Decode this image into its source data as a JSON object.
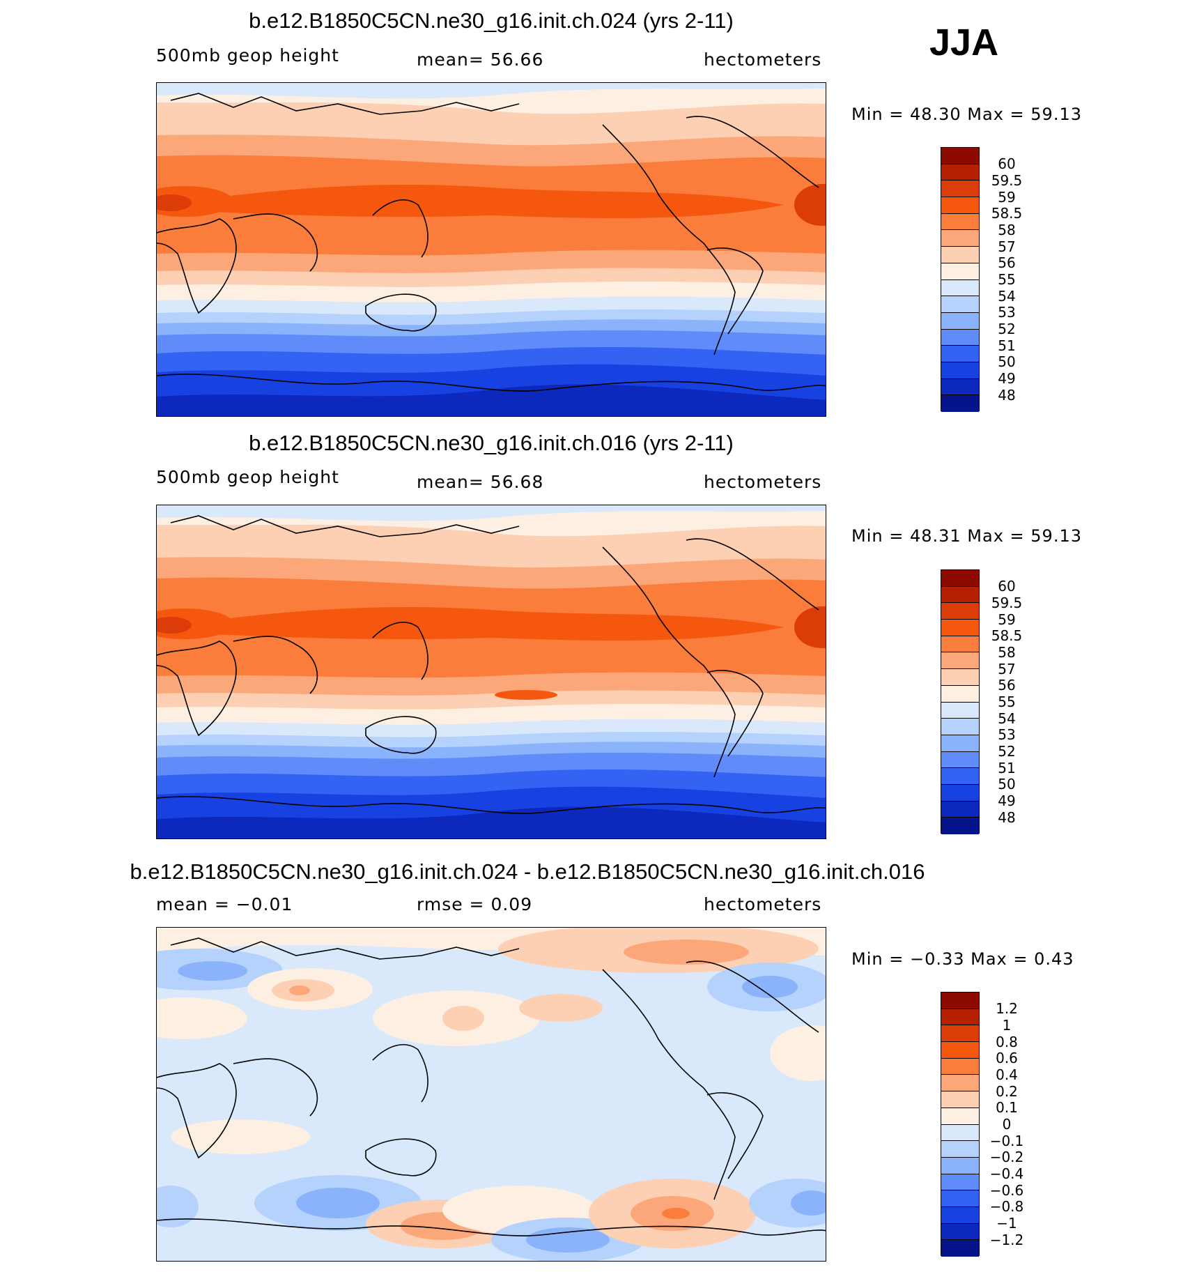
{
  "season": "JJA",
  "panels": [
    {
      "title": "b.e12.B1850C5CN.ne30_g16.init.ch.024 (yrs 2-11)",
      "left_sub": "500mb geop height",
      "mid_sub": "mean=   56.66",
      "right_sub": "hectometers",
      "minmax": "Min =   48.30 Max =   59.13",
      "levels": [
        "60",
        "59.5",
        "59",
        "58.5",
        "58",
        "57",
        "56",
        "55",
        "54",
        "53",
        "52",
        "51",
        "50",
        "49",
        "48"
      ]
    },
    {
      "title": "b.e12.B1850C5CN.ne30_g16.init.ch.016 (yrs 2-11)",
      "left_sub": "500mb geop height",
      "mid_sub": "mean=   56.68",
      "right_sub": "hectometers",
      "minmax": "Min =   48.31 Max =   59.13",
      "levels": [
        "60",
        "59.5",
        "59",
        "58.5",
        "58",
        "57",
        "56",
        "55",
        "54",
        "53",
        "52",
        "51",
        "50",
        "49",
        "48"
      ]
    },
    {
      "title": "b.e12.B1850C5CN.ne30_g16.init.ch.024 - b.e12.B1850C5CN.ne30_g16.init.ch.016",
      "left_sub": "mean =   −0.01",
      "mid_sub": "rmse =    0.09",
      "right_sub": "hectometers",
      "minmax": "Min =  −0.33 Max =    0.43",
      "levels": [
        "1.2",
        "1",
        "0.8",
        "0.6",
        "0.4",
        "0.2",
        "0.1",
        "0",
        "−0.1",
        "−0.2",
        "−0.4",
        "−0.6",
        "−0.8",
        "−1",
        "−1.2"
      ]
    }
  ],
  "colors": {
    "scale": [
      "#8c0a00",
      "#b42000",
      "#dc3c07",
      "#f5570f",
      "#fa7d3b",
      "#fca77a",
      "#fdd0b4",
      "#fdefe1",
      "#d9e9fb",
      "#b4d2fb",
      "#8bb3fb",
      "#5f8cf8",
      "#3462f3",
      "#1841e2",
      "#0c28bd",
      "#06148c"
    ]
  }
}
